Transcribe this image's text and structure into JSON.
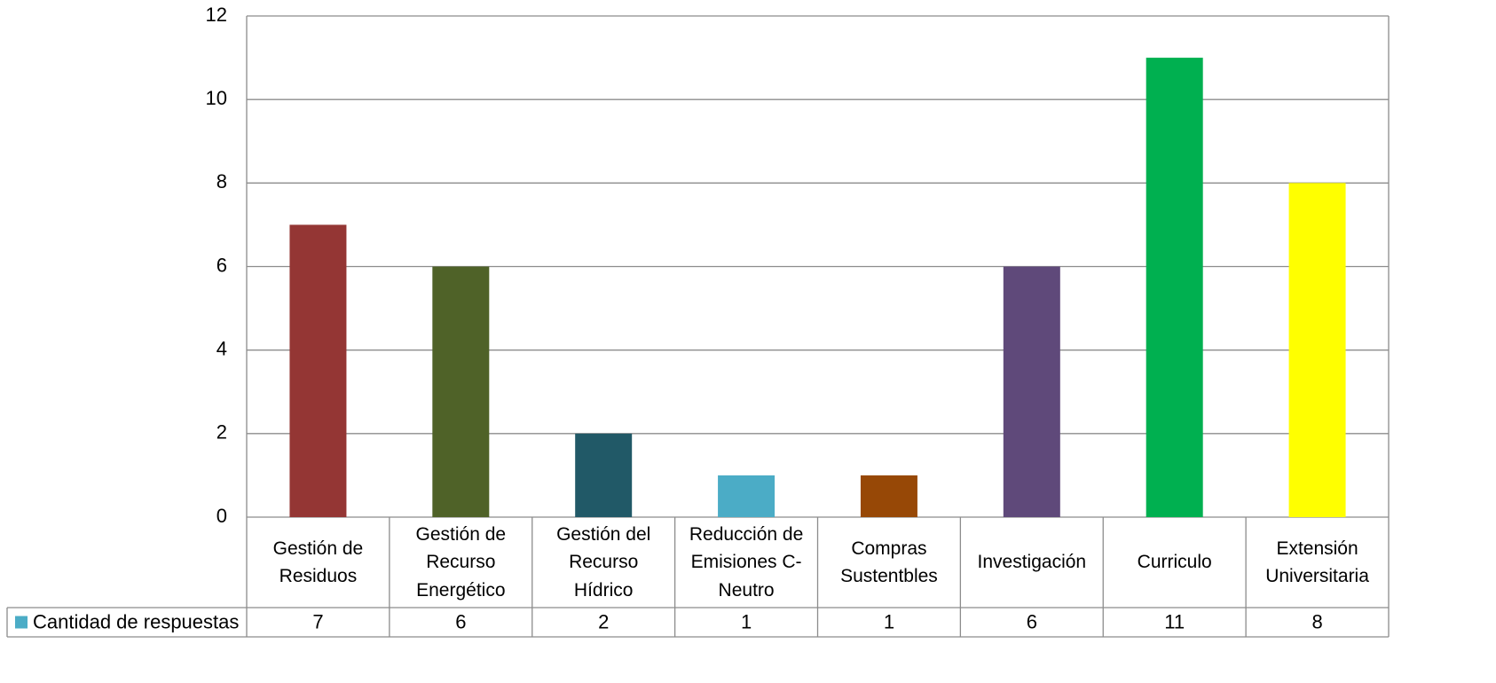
{
  "chart_data": {
    "type": "bar",
    "categories": [
      "Gestión de Residuos",
      "Gestión de Recurso Energético",
      "Gestión del Recurso Hídrico",
      "Reducción de Emisiones C-Neutro",
      "Compras Sustentbles",
      "Investigación",
      "Curriculo",
      "Extensión Universitaria"
    ],
    "series": [
      {
        "name": "Cantidad de respuestas",
        "color": "#4bacc6",
        "values": [
          7,
          6,
          2,
          1,
          1,
          6,
          11,
          8
        ]
      }
    ],
    "bar_colors": [
      "#943634",
      "#4f6228",
      "#215967",
      "#4bacc6",
      "#974806",
      "#5f497a",
      "#00b050",
      "#ffff00"
    ],
    "ylim": [
      0,
      12
    ],
    "yticks": [
      0,
      2,
      4,
      6,
      8,
      10,
      12
    ],
    "grid": true,
    "data_table": true
  }
}
